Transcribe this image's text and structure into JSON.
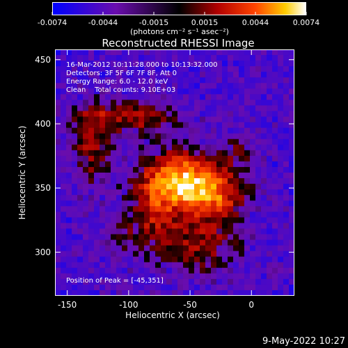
{
  "colorbar": {
    "tick_labels": [
      "-0.0074",
      "-0.0044",
      "-0.0015",
      "0.0015",
      "0.0044",
      "0.0074"
    ],
    "units_label": "(photons cm⁻² s⁻¹ asec⁻²)"
  },
  "footer": {
    "date_stamp": "9-May-2022 10:27"
  },
  "chart_data": {
    "type": "heatmap",
    "title": "Reconstructed RHESSI Image",
    "xlabel": "Heliocentric X (arcsec)",
    "ylabel": "Heliocentric Y (arcsec)",
    "xlim": [
      -160,
      35
    ],
    "ylim": [
      266,
      458
    ],
    "xticks": [
      -150,
      -100,
      -50,
      0
    ],
    "yticks": [
      300,
      350,
      400,
      450
    ],
    "clim": [
      -0.0074,
      0.0074
    ],
    "colormap": [
      "#0000ff",
      "#6a0dad",
      "#000000",
      "#8b0000",
      "#ff3300",
      "#ffcc00",
      "#ffffff"
    ],
    "peak_position": [
      -45,
      351
    ],
    "annotations": {
      "time_range": "16-Mar-2012 10:11:28.000 to 10:13:32.000",
      "detectors": "Detectors: 3F 5F 6F 7F 8F, Att 0",
      "energy_range": "Energy Range: 6.0 - 12.0 keV",
      "method": "Clean    Total counts: 9.10E+03",
      "peak_label": "Position of Peak = [-45,351]"
    }
  }
}
